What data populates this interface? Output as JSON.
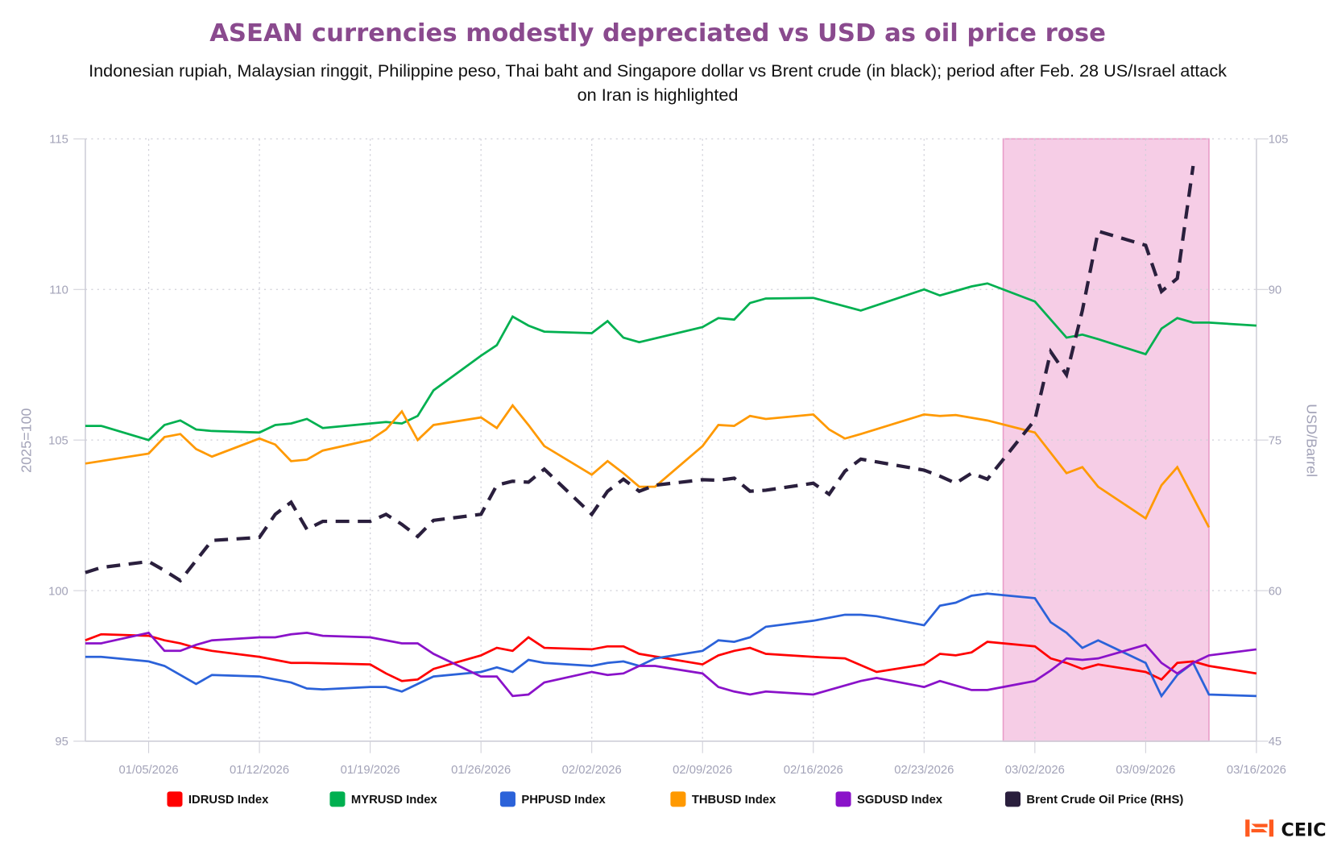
{
  "chart_data": {
    "type": "line",
    "title": "ASEAN currencies modestly depreciated vs USD as oil price rose",
    "subtitle_lines": [
      "Indonesian rupiah, Malaysian ringgit, Philippine peso, Thai baht and Singapore dollar vs Brent crude (in black); period after Feb. 28 US/Israel attack",
      "on Iran is highlighted"
    ],
    "title_color": "#8a4a8e",
    "ylabel_left": "2025=100",
    "ylabel_right": "USD/Barrel",
    "ylim_left": [
      95,
      115
    ],
    "ylim_right": [
      45,
      105
    ],
    "yticks_left": [
      "115",
      "110",
      "105",
      "100",
      "95"
    ],
    "yticks_right": [
      "105",
      "90",
      "75",
      "60",
      "45"
    ],
    "xlim": [
      "01/01/2026",
      "03/16/2026"
    ],
    "xticks": [
      "01/05/2026",
      "01/12/2026",
      "01/19/2026",
      "01/26/2026",
      "02/02/2026",
      "02/09/2026",
      "02/16/2026",
      "02/23/2026",
      "03/02/2026",
      "03/09/2026",
      "03/16/2026"
    ],
    "grid": true,
    "legend_position": "bottom",
    "highlight": {
      "start": "02/28/2026",
      "end": "03/13/2026",
      "color": "#f6cde6"
    },
    "dates": [
      "01/01/2026",
      "01/02/2026",
      "01/05/2026",
      "01/06/2026",
      "01/07/2026",
      "01/08/2026",
      "01/09/2026",
      "01/12/2026",
      "01/13/2026",
      "01/14/2026",
      "01/15/2026",
      "01/16/2026",
      "01/19/2026",
      "01/20/2026",
      "01/21/2026",
      "01/22/2026",
      "01/23/2026",
      "01/26/2026",
      "01/27/2026",
      "01/28/2026",
      "01/29/2026",
      "01/30/2026",
      "02/02/2026",
      "02/03/2026",
      "02/04/2026",
      "02/05/2026",
      "02/06/2026",
      "02/09/2026",
      "02/10/2026",
      "02/11/2026",
      "02/12/2026",
      "02/13/2026",
      "02/16/2026",
      "02/17/2026",
      "02/18/2026",
      "02/19/2026",
      "02/20/2026",
      "02/23/2026",
      "02/24/2026",
      "02/25/2026",
      "02/26/2026",
      "02/27/2026",
      "03/02/2026",
      "03/03/2026",
      "03/04/2026",
      "03/05/2026",
      "03/06/2026",
      "03/09/2026",
      "03/10/2026",
      "03/11/2026",
      "03/12/2026",
      "03/13/2026",
      "03/16/2026"
    ],
    "series": [
      {
        "name": "IDRUSD Index",
        "axis": "left",
        "color": "#ff0000",
        "dashed": false,
        "values": [
          98.35,
          98.55,
          98.5,
          98.35,
          98.25,
          98.1,
          98.0,
          97.8,
          97.7,
          97.6,
          97.6,
          null,
          97.55,
          97.25,
          97.0,
          97.05,
          97.4,
          97.85,
          98.1,
          98.0,
          98.45,
          98.1,
          98.05,
          98.15,
          98.15,
          97.9,
          null,
          97.55,
          97.85,
          98.0,
          98.1,
          97.9,
          97.8,
          null,
          97.75,
          null,
          97.3,
          97.55,
          97.9,
          97.85,
          97.95,
          98.3,
          98.15,
          97.75,
          97.6,
          97.4,
          97.55,
          97.3,
          97.05,
          97.6,
          97.65,
          97.5,
          97.25
        ]
      },
      {
        "name": "MYRUSD Index",
        "axis": "left",
        "color": "#00b050",
        "dashed": false,
        "values": [
          105.47,
          105.47,
          105.0,
          105.5,
          105.65,
          105.35,
          105.3,
          105.25,
          105.5,
          105.55,
          105.7,
          105.4,
          105.55,
          105.6,
          105.55,
          105.8,
          106.65,
          107.8,
          108.15,
          109.1,
          108.8,
          108.6,
          108.55,
          108.95,
          108.4,
          108.25,
          null,
          108.75,
          109.05,
          109.0,
          109.55,
          109.7,
          109.72,
          null,
          null,
          109.3,
          null,
          110.0,
          109.8,
          109.95,
          110.1,
          110.2,
          109.6,
          null,
          108.4,
          108.5,
          108.35,
          107.85,
          108.7,
          109.05,
          108.9,
          108.9,
          108.8
        ]
      },
      {
        "name": "PHPUSD Index",
        "axis": "left",
        "color": "#2b62d9",
        "dashed": false,
        "values": [
          97.8,
          97.8,
          97.65,
          97.5,
          97.2,
          96.9,
          97.2,
          97.15,
          97.05,
          96.95,
          96.75,
          96.72,
          96.8,
          96.8,
          96.65,
          96.9,
          97.15,
          97.3,
          97.45,
          97.3,
          97.7,
          97.6,
          97.5,
          97.6,
          97.65,
          97.5,
          97.75,
          98.0,
          98.35,
          98.3,
          98.45,
          98.8,
          99.0,
          null,
          99.2,
          99.2,
          99.15,
          98.85,
          99.5,
          99.6,
          99.83,
          99.9,
          99.75,
          98.95,
          98.6,
          98.1,
          98.35,
          97.6,
          96.5,
          97.2,
          97.6,
          96.55,
          96.5
        ]
      },
      {
        "name": "THBUSD Index",
        "axis": "left",
        "color": "#ff9900",
        "dashed": false,
        "values": [
          104.22,
          null,
          104.55,
          105.1,
          105.2,
          104.7,
          104.45,
          105.05,
          104.85,
          104.3,
          104.35,
          104.65,
          105.0,
          105.35,
          105.95,
          105.0,
          105.5,
          105.75,
          105.4,
          106.15,
          105.5,
          104.8,
          103.85,
          104.3,
          103.9,
          103.45,
          103.45,
          104.8,
          105.5,
          105.47,
          105.8,
          105.7,
          105.85,
          105.35,
          105.05,
          105.2,
          null,
          105.85,
          105.8,
          105.83,
          null,
          105.65,
          105.25,
          null,
          103.9,
          104.1,
          103.45,
          102.4,
          103.5,
          104.1,
          null,
          102.1,
          null
        ]
      },
      {
        "name": "SGDUSD Index",
        "axis": "left",
        "color": "#8a12c9",
        "dashed": false,
        "values": [
          98.25,
          98.25,
          98.6,
          98.0,
          98.0,
          98.2,
          98.35,
          98.45,
          98.45,
          98.55,
          98.6,
          98.5,
          98.45,
          98.35,
          98.25,
          98.25,
          97.9,
          97.15,
          97.15,
          96.5,
          96.55,
          96.95,
          97.3,
          97.2,
          97.25,
          97.5,
          97.5,
          97.25,
          96.8,
          96.65,
          96.55,
          96.65,
          96.55,
          null,
          null,
          97.0,
          97.1,
          96.8,
          97.0,
          96.85,
          96.7,
          96.7,
          97.0,
          97.35,
          97.75,
          97.7,
          97.75,
          98.2,
          97.6,
          97.25,
          97.6,
          97.85,
          98.05
        ]
      },
      {
        "name": "Brent Crude Oil Price (RHS)",
        "axis": "right",
        "color": "#2a1f3d",
        "dashed": true,
        "values": [
          61.8,
          62.3,
          62.9,
          62.0,
          61.0,
          63.0,
          65.0,
          65.3,
          67.6,
          68.8,
          66.1,
          66.9,
          66.9,
          67.6,
          66.6,
          65.4,
          67.0,
          67.6,
          70.5,
          70.9,
          70.8,
          72.1,
          67.6,
          69.9,
          71.1,
          69.9,
          70.5,
          71.05,
          71.0,
          71.2,
          69.9,
          70.0,
          70.7,
          69.6,
          71.9,
          73.1,
          null,
          72.0,
          71.4,
          70.7,
          71.7,
          71.1,
          77.0,
          83.8,
          81.5,
          87.9,
          95.8,
          94.4,
          89.8,
          91.1,
          102.3,
          null,
          null
        ]
      }
    ]
  },
  "branding": {
    "logo_text": "CEIC",
    "logo_color": "#ff5a1f"
  }
}
